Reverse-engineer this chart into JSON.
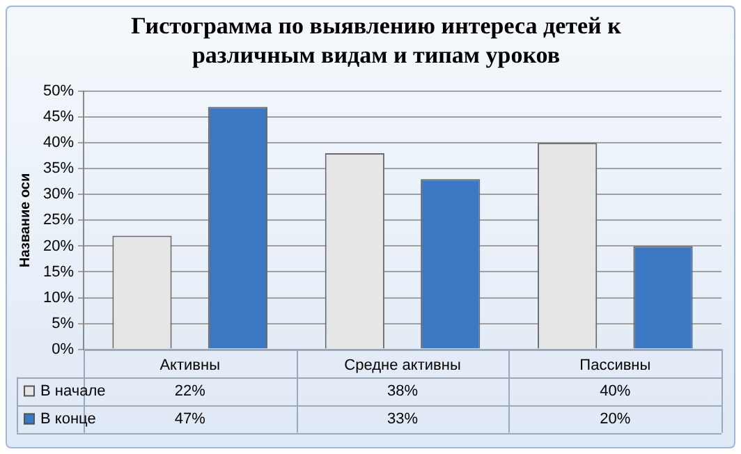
{
  "chart_data": {
    "type": "bar",
    "title": "Гистограмма по выявлению интереса детей к различным видам и типам уроков",
    "ylabel": "Название оси",
    "categories": [
      "Активны",
      "Средне активны",
      "Пассивны"
    ],
    "series": [
      {
        "name": "В начале",
        "color": "#e6e6e6",
        "values": [
          22,
          38,
          40
        ],
        "value_labels": [
          "22%",
          "38%",
          "40%"
        ]
      },
      {
        "name": "В конце",
        "color": "#3b78c4",
        "values": [
          47,
          33,
          20
        ],
        "value_labels": [
          "47%",
          "33%",
          "20%"
        ]
      }
    ],
    "ylim": [
      0,
      50
    ],
    "yticks": [
      {
        "value": 0,
        "label": "0%"
      },
      {
        "value": 5,
        "label": "5%"
      },
      {
        "value": 10,
        "label": "10%"
      },
      {
        "value": 15,
        "label": "15%"
      },
      {
        "value": 20,
        "label": "20%"
      },
      {
        "value": 25,
        "label": "25%"
      },
      {
        "value": 30,
        "label": "30%"
      },
      {
        "value": 35,
        "label": "35%"
      },
      {
        "value": 40,
        "label": "40%"
      },
      {
        "value": 45,
        "label": "45%"
      },
      {
        "value": 50,
        "label": "50%"
      }
    ],
    "grid": "y",
    "legend": "bottom"
  }
}
